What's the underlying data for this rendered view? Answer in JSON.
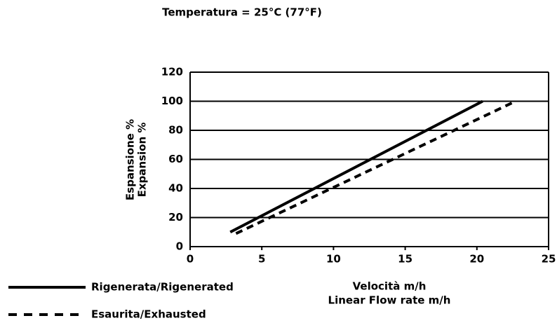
{
  "chart_data": {
    "type": "line",
    "title": "Temperatura = 25°C (77°F)",
    "ylabel": [
      "Espansione %",
      "Expansion %"
    ],
    "xlabel": [
      "Velocità m/h",
      "Linear Flow rate m/h"
    ],
    "series": [
      {
        "name": "Rigenerata/Rigenerated",
        "color": "#000000",
        "style": "solid",
        "x": [
          2.8,
          20.4
        ],
        "values": [
          10,
          100
        ]
      },
      {
        "name": "Esaurita/Exhausted",
        "color": "#000000",
        "style": "dashed",
        "x": [
          3.2,
          22.7
        ],
        "values": [
          9,
          100
        ]
      }
    ],
    "xlim": [
      0,
      25
    ],
    "xticks": [
      0,
      5,
      10,
      15,
      20,
      25
    ],
    "ylim": [
      0,
      120
    ],
    "yticks": [
      0,
      20,
      40,
      60,
      80,
      100,
      120
    ],
    "grid": true
  }
}
